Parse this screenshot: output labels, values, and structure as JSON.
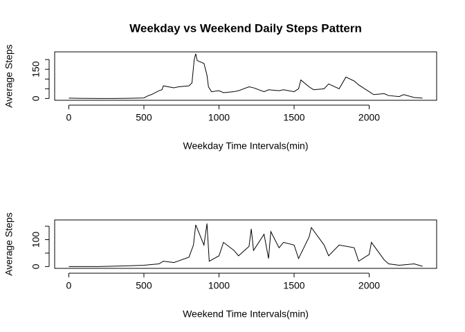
{
  "chart_data": [
    {
      "type": "line",
      "title": "Weekday vs Weekend Daily Steps Pattern",
      "xlabel": "Weekday Time Intervals(min)",
      "ylabel": "Average Steps",
      "xlim": [
        -94.2,
        2449.2
      ],
      "xticks": [
        0,
        500,
        1000,
        1500,
        2000
      ],
      "ylim": [
        -9.2,
        239.6
      ],
      "yticks": [
        0,
        150
      ],
      "yminor_ticks": [
        50,
        100,
        200
      ],
      "color": "#000000",
      "x": [
        0,
        100,
        200,
        300,
        400,
        500,
        530,
        550,
        600,
        620,
        630,
        700,
        730,
        800,
        820,
        830,
        835,
        845,
        855,
        900,
        920,
        930,
        950,
        1000,
        1030,
        1100,
        1130,
        1200,
        1230,
        1300,
        1330,
        1400,
        1430,
        1500,
        1530,
        1545,
        1600,
        1630,
        1700,
        1730,
        1800,
        1845,
        1900,
        1930,
        2000,
        2030,
        2100,
        2130,
        2200,
        2230,
        2300,
        2355
      ],
      "values": [
        2,
        0.5,
        0.3,
        0,
        1,
        3,
        15,
        20,
        40,
        45,
        65,
        55,
        60,
        65,
        80,
        160,
        200,
        230,
        195,
        180,
        120,
        60,
        35,
        40,
        30,
        35,
        40,
        60,
        55,
        35,
        45,
        40,
        45,
        35,
        50,
        95,
        60,
        45,
        50,
        75,
        50,
        110,
        90,
        70,
        35,
        20,
        25,
        15,
        10,
        20,
        5,
        2
      ]
    },
    {
      "type": "line",
      "xlabel": "Weekend Time Intervals(min)",
      "ylabel": "Average Steps",
      "xlim": [
        -94.2,
        2449.2
      ],
      "xticks": [
        0,
        500,
        1000,
        1500,
        2000
      ],
      "ylim": [
        -6.66,
        173.3
      ],
      "yticks": [
        0,
        100
      ],
      "yminor_ticks": [
        50,
        150
      ],
      "color": "#000000",
      "x": [
        0,
        200,
        400,
        500,
        600,
        630,
        700,
        800,
        830,
        845,
        900,
        920,
        935,
        1000,
        1030,
        1100,
        1130,
        1200,
        1215,
        1230,
        1300,
        1330,
        1345,
        1400,
        1430,
        1500,
        1530,
        1600,
        1615,
        1700,
        1730,
        1800,
        1900,
        1930,
        2000,
        2015,
        2100,
        2130,
        2200,
        2300,
        2355
      ],
      "values": [
        0,
        0,
        3,
        5,
        10,
        20,
        15,
        35,
        80,
        155,
        80,
        160,
        20,
        40,
        90,
        60,
        40,
        75,
        140,
        60,
        120,
        30,
        130,
        70,
        90,
        80,
        30,
        110,
        145,
        80,
        40,
        80,
        70,
        20,
        45,
        90,
        25,
        10,
        5,
        10,
        1
      ]
    }
  ]
}
